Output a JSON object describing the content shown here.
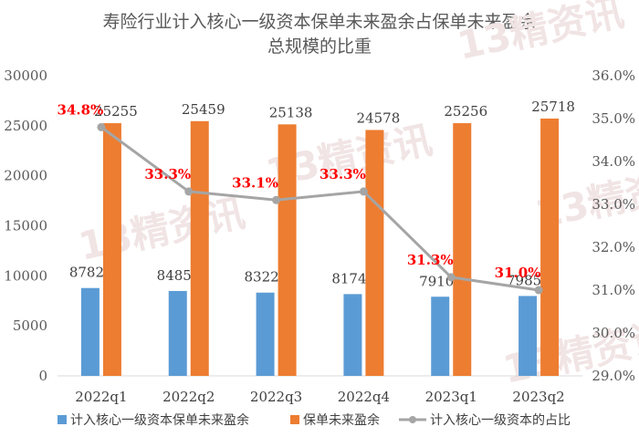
{
  "chart_data": {
    "type": "bar",
    "title_line1": "寿险行业计入核心一级资本保单未来盈余占保单未来盈余",
    "title_line2": "总规模的比重",
    "categories": [
      "2022q1",
      "2022q2",
      "2022q3",
      "2022q4",
      "2023q1",
      "2023q2"
    ],
    "series": [
      {
        "name": "计入核心一级资本保单未来盈余",
        "type": "bar",
        "axis": "left",
        "color": "#5b9bd5",
        "values": [
          8782,
          8485,
          8322,
          8174,
          7910,
          7985
        ]
      },
      {
        "name": "保单未来盈余",
        "type": "bar",
        "axis": "left",
        "color": "#ed7d31",
        "values": [
          25255,
          25459,
          25138,
          24578,
          25256,
          25718
        ]
      },
      {
        "name": "计入核心一级资本的占比",
        "type": "line",
        "axis": "right",
        "color": "#a5a5a5",
        "values": [
          34.8,
          33.3,
          33.1,
          33.3,
          31.3,
          31.0
        ],
        "labels": [
          "34.8%",
          "33.3%",
          "33.1%",
          "33.3%",
          "31.3%",
          "31.0%"
        ]
      }
    ],
    "y_left": {
      "min": 0,
      "max": 30000,
      "step": 5000,
      "ticks": [
        "0",
        "5000",
        "10000",
        "15000",
        "20000",
        "25000",
        "30000"
      ]
    },
    "y_right": {
      "min": 29.0,
      "max": 36.0,
      "step": 1.0,
      "ticks": [
        "29.0%",
        "30.0%",
        "31.0%",
        "32.0%",
        "33.0%",
        "34.0%",
        "35.0%",
        "36.0%"
      ]
    },
    "percent_label_color": "#ff0000",
    "grid": false,
    "legend_position": "bottom"
  },
  "watermark": "13精资讯"
}
